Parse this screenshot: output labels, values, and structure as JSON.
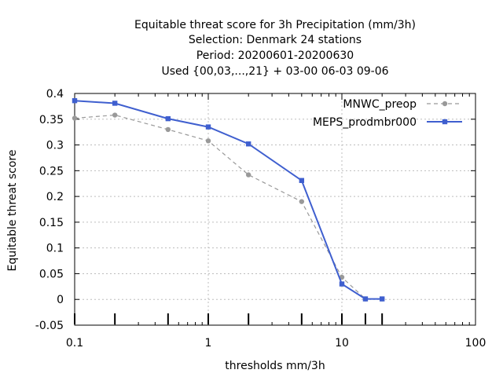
{
  "chart_data": {
    "type": "line",
    "title_lines": [
      "Equitable threat score  for 3h Precipitation (mm/3h)",
      "Selection: Denmark     24 stations",
      "Period: 20200601-20200630",
      "Used {00,03,...,21} + 03-00 06-03 09-06"
    ],
    "xlabel": "thresholds mm/3h",
    "ylabel": "Equitable threat score",
    "x_scale": "log",
    "xlim": [
      0.1,
      100
    ],
    "ylim": [
      -0.05,
      0.4
    ],
    "x_ticks": [
      0.1,
      1,
      10,
      100
    ],
    "x_tick_labels": [
      "0.1",
      "1",
      "10",
      "100"
    ],
    "y_ticks": [
      -0.05,
      0,
      0.05,
      0.1,
      0.15,
      0.2,
      0.25,
      0.3,
      0.35,
      0.4
    ],
    "y_tick_labels": [
      "-0.05",
      "0",
      "0.05",
      "0.1",
      "0.15",
      "0.2",
      "0.25",
      "0.3",
      "0.35",
      "0.4"
    ],
    "grid": true,
    "legend_position": "top-right",
    "threshold_markers": [
      0.1,
      0.2,
      0.5,
      1,
      2,
      5,
      10,
      15,
      20
    ],
    "series": [
      {
        "name": "MNWC_preop",
        "color": "#999999",
        "line_style": "dashed",
        "marker": "circle",
        "x": [
          0.1,
          0.2,
          0.5,
          1,
          2,
          5,
          10,
          15,
          20
        ],
        "y": [
          0.352,
          0.358,
          0.33,
          0.308,
          0.242,
          0.19,
          0.043,
          0.001,
          0.001
        ]
      },
      {
        "name": "MEPS_prodmbr000",
        "color": "#3f5fcf",
        "line_style": "solid",
        "marker": "square",
        "x": [
          0.1,
          0.2,
          0.5,
          1,
          2,
          5,
          10,
          15,
          20
        ],
        "y": [
          0.386,
          0.381,
          0.351,
          0.335,
          0.302,
          0.231,
          0.03,
          0.001,
          0.001
        ]
      }
    ]
  }
}
